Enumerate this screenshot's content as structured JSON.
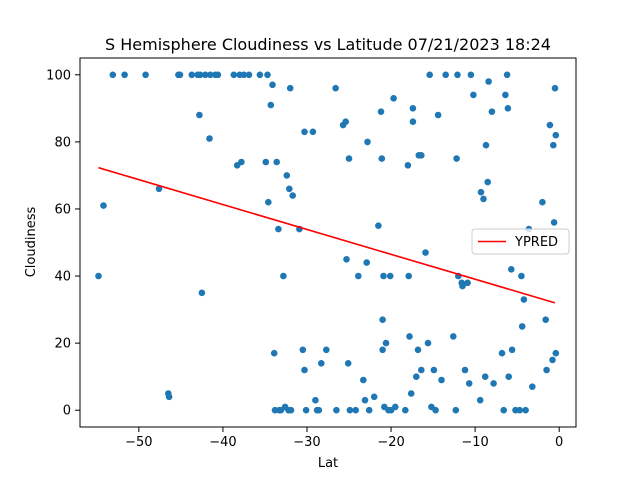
{
  "chart_data": {
    "type": "scatter",
    "title": "S Hemisphere Cloudiness vs Latitude 07/21/2023 18:24",
    "xlabel": "Lat",
    "ylabel": "Cloudiness",
    "xlim": [
      -57,
      2
    ],
    "ylim": [
      -5,
      105
    ],
    "xticks": [
      -50,
      -40,
      -30,
      -20,
      -10,
      0
    ],
    "yticks": [
      0,
      20,
      40,
      60,
      80,
      100
    ],
    "grid": false,
    "legend": {
      "placement": "right",
      "entries": [
        "YPRED"
      ]
    },
    "colors": {
      "points": "#1f77b4",
      "line": "#ff0000"
    },
    "regression": {
      "name": "YPRED",
      "x": [
        -54.8,
        -0.5
      ],
      "y": [
        72.3,
        32.0
      ]
    },
    "points": [
      [
        -54.8,
        40
      ],
      [
        -54.2,
        61
      ],
      [
        -53.1,
        100
      ],
      [
        -51.7,
        100
      ],
      [
        -49.2,
        100
      ],
      [
        -47.6,
        66
      ],
      [
        -46.5,
        5
      ],
      [
        -46.4,
        4
      ],
      [
        -45.3,
        100
      ],
      [
        -45.1,
        100
      ],
      [
        -43.7,
        100
      ],
      [
        -43.0,
        100
      ],
      [
        -42.8,
        88
      ],
      [
        -42.7,
        100
      ],
      [
        -42.5,
        35
      ],
      [
        -42.1,
        100
      ],
      [
        -41.6,
        81
      ],
      [
        -41.5,
        100
      ],
      [
        -40.9,
        100
      ],
      [
        -40.6,
        100
      ],
      [
        -38.7,
        100
      ],
      [
        -38.3,
        73
      ],
      [
        -38.0,
        100
      ],
      [
        -37.8,
        74
      ],
      [
        -37.5,
        100
      ],
      [
        -36.9,
        100
      ],
      [
        -35.6,
        100
      ],
      [
        -34.9,
        74
      ],
      [
        -34.7,
        100
      ],
      [
        -34.6,
        62
      ],
      [
        -34.3,
        91
      ],
      [
        -34.1,
        97
      ],
      [
        -33.9,
        17
      ],
      [
        -33.8,
        0
      ],
      [
        -33.6,
        74
      ],
      [
        -33.4,
        54
      ],
      [
        -33.3,
        0
      ],
      [
        -33.1,
        0
      ],
      [
        -32.8,
        40
      ],
      [
        -32.6,
        1
      ],
      [
        -32.4,
        70
      ],
      [
        -32.2,
        0
      ],
      [
        -32.1,
        66
      ],
      [
        -32.0,
        96
      ],
      [
        -31.9,
        0
      ],
      [
        -31.7,
        64
      ],
      [
        -30.9,
        54
      ],
      [
        -30.5,
        18
      ],
      [
        -30.3,
        83
      ],
      [
        -30.3,
        12
      ],
      [
        -30.1,
        0
      ],
      [
        -29.3,
        83
      ],
      [
        -29.0,
        3
      ],
      [
        -28.8,
        0
      ],
      [
        -28.6,
        0
      ],
      [
        -28.3,
        14
      ],
      [
        -27.7,
        18
      ],
      [
        -26.6,
        96
      ],
      [
        -26.5,
        0
      ],
      [
        -25.7,
        85
      ],
      [
        -25.4,
        86
      ],
      [
        -25.3,
        45
      ],
      [
        -25.1,
        14
      ],
      [
        -25.0,
        75
      ],
      [
        -24.9,
        0
      ],
      [
        -24.2,
        0
      ],
      [
        -23.9,
        40
      ],
      [
        -23.3,
        9
      ],
      [
        -23.1,
        3
      ],
      [
        -22.9,
        44
      ],
      [
        -22.8,
        80
      ],
      [
        -22.6,
        0
      ],
      [
        -22.0,
        4
      ],
      [
        -21.5,
        55
      ],
      [
        -21.2,
        89
      ],
      [
        -21.1,
        75
      ],
      [
        -21.0,
        27
      ],
      [
        -21.0,
        18
      ],
      [
        -20.9,
        40
      ],
      [
        -20.8,
        1
      ],
      [
        -20.6,
        20
      ],
      [
        -20.3,
        0
      ],
      [
        -20.1,
        40
      ],
      [
        -20.0,
        0
      ],
      [
        -19.7,
        93
      ],
      [
        -19.5,
        1
      ],
      [
        -18.3,
        0
      ],
      [
        -18.0,
        73
      ],
      [
        -17.9,
        40
      ],
      [
        -17.8,
        22
      ],
      [
        -17.6,
        5
      ],
      [
        -17.4,
        86
      ],
      [
        -17.4,
        90
      ],
      [
        -17.0,
        10
      ],
      [
        -16.8,
        18
      ],
      [
        -16.7,
        76
      ],
      [
        -16.4,
        76
      ],
      [
        -16.4,
        12
      ],
      [
        -15.9,
        47
      ],
      [
        -15.6,
        20
      ],
      [
        -15.4,
        100
      ],
      [
        -15.2,
        1
      ],
      [
        -14.9,
        12
      ],
      [
        -14.7,
        0
      ],
      [
        -14.4,
        88
      ],
      [
        -14.0,
        9
      ],
      [
        -13.5,
        100
      ],
      [
        -12.6,
        22
      ],
      [
        -12.3,
        0
      ],
      [
        -12.2,
        75
      ],
      [
        -12.1,
        100
      ],
      [
        -12.0,
        40
      ],
      [
        -11.6,
        38
      ],
      [
        -11.5,
        37
      ],
      [
        -11.2,
        12
      ],
      [
        -10.9,
        38
      ],
      [
        -10.7,
        8
      ],
      [
        -10.5,
        100
      ],
      [
        -10.2,
        94
      ],
      [
        -9.4,
        3
      ],
      [
        -9.3,
        65
      ],
      [
        -9.0,
        63
      ],
      [
        -8.8,
        10
      ],
      [
        -8.7,
        79
      ],
      [
        -8.5,
        68
      ],
      [
        -8.4,
        98
      ],
      [
        -8.0,
        89
      ],
      [
        -7.8,
        8
      ],
      [
        -6.8,
        17
      ],
      [
        -6.6,
        0
      ],
      [
        -6.4,
        94
      ],
      [
        -6.2,
        100
      ],
      [
        -6.1,
        90
      ],
      [
        -6.0,
        10
      ],
      [
        -5.7,
        42
      ],
      [
        -5.6,
        18
      ],
      [
        -5.2,
        0
      ],
      [
        -4.7,
        0
      ],
      [
        -4.5,
        40
      ],
      [
        -4.4,
        25
      ],
      [
        -4.2,
        33
      ],
      [
        -4.0,
        0
      ],
      [
        -3.6,
        54
      ],
      [
        -3.2,
        7
      ],
      [
        -2.0,
        62
      ],
      [
        -1.6,
        27
      ],
      [
        -1.5,
        12
      ],
      [
        -1.1,
        85
      ],
      [
        -0.8,
        15
      ],
      [
        -0.7,
        79
      ],
      [
        -0.6,
        56
      ],
      [
        -0.5,
        96
      ],
      [
        -0.4,
        82
      ],
      [
        -0.4,
        17
      ]
    ]
  }
}
